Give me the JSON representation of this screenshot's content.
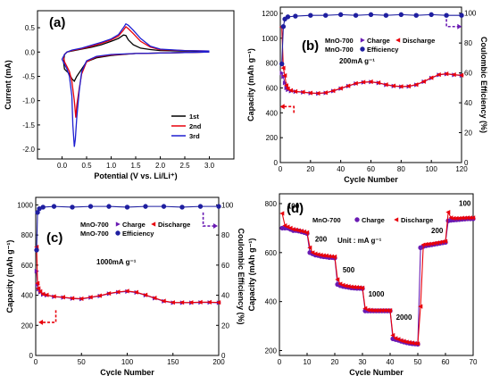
{
  "chart_data": [
    {
      "panel": "(a)",
      "type": "line",
      "xlabel": "Potential (V vs. Li/Li⁺)",
      "ylabel": "Current (mA)",
      "xlim": [
        -0.5,
        3.5
      ],
      "ylim": [
        -2.2,
        0.85
      ],
      "xticks": [
        "0.0",
        "0.5",
        "1.0",
        "1.5",
        "2.0",
        "2.5",
        "3.0"
      ],
      "yticks": [
        "-2.0",
        "-1.5",
        "-1.0",
        "-0.5",
        "0.0",
        "0.5"
      ],
      "legend_position": "lower-right",
      "series": [
        {
          "name": "1st",
          "color": "#000000",
          "x": [
            3.0,
            2.5,
            2.0,
            1.5,
            1.0,
            0.7,
            0.5,
            0.4,
            0.3,
            0.25,
            0.2,
            0.15,
            0.1,
            0.05,
            0.03,
            0.05,
            0.1,
            0.2,
            0.4,
            0.6,
            0.8,
            1.0,
            1.15,
            1.25,
            1.3,
            1.35,
            1.45,
            1.6,
            1.8,
            2.0,
            2.5,
            3.0
          ],
          "y": [
            0.0,
            -0.01,
            -0.02,
            -0.03,
            -0.07,
            -0.12,
            -0.2,
            -0.35,
            -0.5,
            -0.6,
            -0.55,
            -0.45,
            -0.4,
            -0.35,
            -0.2,
            -0.05,
            0.0,
            0.02,
            0.06,
            0.1,
            0.15,
            0.22,
            0.28,
            0.35,
            0.34,
            0.25,
            0.15,
            0.08,
            0.05,
            0.03,
            0.02,
            0.02
          ]
        },
        {
          "name": "2nd",
          "color": "#e8000b",
          "x": [
            3.0,
            2.5,
            2.0,
            1.5,
            1.0,
            0.7,
            0.5,
            0.4,
            0.35,
            0.3,
            0.28,
            0.25,
            0.2,
            0.15,
            0.1,
            0.05,
            0.03,
            0.05,
            0.1,
            0.2,
            0.4,
            0.6,
            0.8,
            1.0,
            1.15,
            1.25,
            1.3,
            1.35,
            1.45,
            1.6,
            1.8,
            2.0,
            2.5,
            3.0
          ],
          "y": [
            0.0,
            -0.01,
            -0.02,
            -0.03,
            -0.06,
            -0.1,
            -0.2,
            -0.45,
            -0.75,
            -1.1,
            -1.35,
            -1.0,
            -0.6,
            -0.4,
            -0.3,
            -0.2,
            -0.1,
            -0.05,
            0.0,
            0.03,
            0.07,
            0.12,
            0.18,
            0.25,
            0.33,
            0.45,
            0.52,
            0.48,
            0.38,
            0.22,
            0.1,
            0.05,
            0.03,
            0.02
          ]
        },
        {
          "name": "3rd",
          "color": "#1f1fd1",
          "x": [
            3.0,
            2.5,
            2.0,
            1.5,
            1.0,
            0.7,
            0.5,
            0.4,
            0.35,
            0.3,
            0.27,
            0.25,
            0.22,
            0.2,
            0.15,
            0.1,
            0.05,
            0.0,
            0.05,
            0.1,
            0.2,
            0.4,
            0.6,
            0.8,
            1.0,
            1.15,
            1.25,
            1.3,
            1.35,
            1.45,
            1.6,
            1.8,
            2.0,
            2.5,
            3.0
          ],
          "y": [
            0.0,
            -0.01,
            -0.02,
            -0.03,
            -0.05,
            -0.09,
            -0.18,
            -0.4,
            -0.8,
            -1.35,
            -1.8,
            -1.95,
            -1.5,
            -0.9,
            -0.5,
            -0.35,
            -0.25,
            -0.15,
            -0.05,
            0.0,
            0.04,
            0.08,
            0.14,
            0.2,
            0.27,
            0.36,
            0.5,
            0.58,
            0.55,
            0.45,
            0.28,
            0.12,
            0.06,
            0.03,
            0.02
          ]
        }
      ]
    },
    {
      "panel": "(b)",
      "type": "line",
      "xlabel": "Cycle Number",
      "ylabel": "Capacity (mAh g⁻¹)",
      "ylabel_right": "Coulombic Efficiency (%)",
      "xlim": [
        0,
        120
      ],
      "ylim": [
        0,
        1250
      ],
      "ylim_right": [
        0,
        104
      ],
      "xticks": [
        "0",
        "20",
        "40",
        "60",
        "80",
        "100",
        "120"
      ],
      "yticks": [
        "0",
        "200",
        "400",
        "600",
        "800",
        "1000",
        "1200"
      ],
      "yticks_right": [
        "0",
        "20",
        "40",
        "60",
        "80",
        "100"
      ],
      "annotation": "200mA g⁻¹",
      "legend_position": "top-right",
      "series": [
        {
          "name": "Charge",
          "label": "MnO-700",
          "color": "#6a1bb3",
          "axis": "left",
          "x": [
            1,
            2,
            3,
            4,
            5,
            7,
            10,
            15,
            20,
            25,
            30,
            35,
            40,
            45,
            50,
            55,
            60,
            65,
            70,
            75,
            80,
            85,
            90,
            95,
            100,
            105,
            110,
            115,
            120
          ],
          "y": [
            720,
            690,
            640,
            600,
            585,
            575,
            570,
            565,
            558,
            555,
            560,
            575,
            595,
            615,
            635,
            645,
            648,
            640,
            625,
            615,
            610,
            612,
            625,
            650,
            680,
            705,
            712,
            705,
            700
          ]
        },
        {
          "name": "Discharge",
          "label": "MnO-700",
          "color": "#e8000b",
          "axis": "left",
          "x": [
            1,
            2,
            3,
            4,
            5,
            7,
            10,
            15,
            20,
            25,
            30,
            35,
            40,
            45,
            50,
            55,
            60,
            65,
            70,
            75,
            80,
            85,
            90,
            95,
            100,
            105,
            110,
            115,
            120
          ],
          "y": [
            1090,
            760,
            700,
            620,
            595,
            580,
            572,
            567,
            560,
            557,
            562,
            577,
            597,
            617,
            637,
            647,
            650,
            642,
            627,
            617,
            612,
            614,
            627,
            652,
            682,
            707,
            714,
            707,
            702
          ]
        },
        {
          "name": "Efficiency",
          "label": "MnO-700",
          "color": "#1f1fa0",
          "axis": "right",
          "x": [
            1,
            2,
            3,
            5,
            10,
            20,
            30,
            40,
            50,
            60,
            70,
            80,
            90,
            100,
            110,
            120
          ],
          "y": [
            66,
            91,
            96,
            97.5,
            98,
            98.5,
            98.5,
            99,
            98.5,
            99,
            98.5,
            99,
            98.5,
            99,
            98.5,
            98.5
          ]
        }
      ]
    },
    {
      "panel": "(c)",
      "type": "line",
      "xlabel": "Cycle Number",
      "ylabel": "Capacity (mAh g⁻¹)",
      "ylabel_right": "Coulombic Efficiency (%)",
      "xlim": [
        0,
        200
      ],
      "ylim": [
        0,
        1050
      ],
      "ylim_right": [
        0,
        105
      ],
      "xticks": [
        "0",
        "50",
        "100",
        "150",
        "200"
      ],
      "yticks": [
        "0",
        "200",
        "400",
        "600",
        "800",
        "1000"
      ],
      "yticks_right": [
        "0",
        "20",
        "40",
        "60",
        "80",
        "100"
      ],
      "annotation": "1000mA g⁻¹",
      "legend_position": "top-right",
      "series": [
        {
          "name": "Charge",
          "label": "MnO-700",
          "color": "#6a1bb3",
          "axis": "left",
          "x": [
            1,
            2,
            3,
            5,
            8,
            12,
            20,
            30,
            40,
            50,
            60,
            70,
            80,
            90,
            100,
            110,
            120,
            130,
            140,
            150,
            160,
            170,
            180,
            190,
            200
          ],
          "y": [
            560,
            470,
            440,
            420,
            405,
            400,
            390,
            385,
            378,
            375,
            385,
            395,
            410,
            420,
            425,
            418,
            400,
            380,
            360,
            350,
            350,
            350,
            352,
            352,
            350
          ]
        },
        {
          "name": "Discharge",
          "label": "MnO-700",
          "color": "#e8000b",
          "axis": "left",
          "x": [
            1,
            2,
            3,
            5,
            8,
            12,
            20,
            30,
            40,
            50,
            60,
            70,
            80,
            90,
            100,
            110,
            120,
            130,
            140,
            150,
            160,
            170,
            180,
            190,
            200
          ],
          "y": [
            720,
            480,
            445,
            425,
            408,
            402,
            392,
            387,
            380,
            377,
            387,
            397,
            412,
            422,
            428,
            420,
            402,
            382,
            362,
            352,
            352,
            352,
            354,
            354,
            352
          ]
        },
        {
          "name": "Efficiency",
          "label": "MnO-700",
          "color": "#1f1fa0",
          "axis": "right",
          "x": [
            1,
            2,
            4,
            8,
            20,
            40,
            60,
            80,
            100,
            120,
            140,
            160,
            180,
            200
          ],
          "y": [
            70,
            95,
            97.5,
            98.5,
            99,
            98.5,
            99,
            99,
            98.5,
            99,
            99,
            98.5,
            99,
            99
          ]
        }
      ]
    },
    {
      "panel": "(d)",
      "type": "line",
      "xlabel": "Cycle Number",
      "ylabel": "Capacity (mAh g⁻¹)",
      "xlim": [
        0,
        70
      ],
      "ylim": [
        180,
        840
      ],
      "xticks": [
        "0",
        "10",
        "20",
        "30",
        "40",
        "50",
        "60",
        "70"
      ],
      "yticks": [
        "200",
        "400",
        "600",
        "800"
      ],
      "annotation": "Unit : mA g⁻¹",
      "rate_labels": [
        "100",
        "200",
        "500",
        "1000",
        "2000",
        "200",
        "100"
      ],
      "legend_position": "top-center",
      "series": [
        {
          "name": "Charge",
          "label": "MnO-700",
          "color": "#6a1bb3",
          "x": [
            1,
            2,
            3,
            4,
            5,
            6,
            7,
            8,
            9,
            10,
            11,
            12,
            13,
            14,
            15,
            16,
            17,
            18,
            19,
            20,
            21,
            22,
            23,
            24,
            25,
            26,
            27,
            28,
            29,
            30,
            31,
            32,
            33,
            34,
            35,
            36,
            37,
            38,
            39,
            40,
            41,
            42,
            43,
            44,
            45,
            46,
            47,
            48,
            49,
            50,
            51,
            52,
            53,
            54,
            55,
            56,
            57,
            58,
            59,
            60,
            61,
            62,
            63,
            64,
            65,
            66,
            67,
            68,
            69,
            70
          ],
          "y": [
            700,
            700,
            700,
            695,
            690,
            690,
            688,
            685,
            682,
            678,
            600,
            595,
            590,
            588,
            585,
            583,
            582,
            580,
            580,
            578,
            470,
            465,
            462,
            460,
            458,
            456,
            455,
            454,
            454,
            453,
            362,
            362,
            362,
            362,
            362,
            362,
            362,
            362,
            362,
            362,
            248,
            245,
            242,
            238,
            235,
            232,
            230,
            228,
            227,
            226,
            620,
            625,
            628,
            630,
            632,
            634,
            636,
            638,
            640,
            642,
            730,
            732,
            733,
            734,
            735,
            736,
            737,
            738,
            738,
            738
          ]
        },
        {
          "name": "Discharge",
          "label": "MnO-700",
          "color": "#e8000b",
          "x": [
            1,
            2,
            3,
            4,
            5,
            6,
            7,
            8,
            9,
            10,
            11,
            12,
            13,
            14,
            15,
            16,
            17,
            18,
            19,
            20,
            21,
            22,
            23,
            24,
            25,
            26,
            27,
            28,
            29,
            30,
            31,
            32,
            33,
            34,
            35,
            36,
            37,
            38,
            39,
            40,
            41,
            42,
            43,
            44,
            45,
            46,
            47,
            48,
            49,
            50,
            51,
            52,
            53,
            54,
            55,
            56,
            57,
            58,
            59,
            60,
            61,
            62,
            63,
            64,
            65,
            66,
            67,
            68,
            69,
            70
          ],
          "y": [
            760,
            710,
            705,
            700,
            695,
            693,
            690,
            688,
            685,
            682,
            620,
            600,
            595,
            592,
            590,
            588,
            587,
            585,
            584,
            583,
            490,
            472,
            467,
            464,
            462,
            460,
            459,
            458,
            457,
            456,
            372,
            366,
            365,
            364,
            364,
            364,
            364,
            364,
            364,
            364,
            262,
            250,
            246,
            241,
            238,
            235,
            233,
            231,
            229,
            228,
            380,
            632,
            634,
            635,
            636,
            638,
            640,
            642,
            644,
            646,
            765,
            742,
            740,
            740,
            740,
            741,
            741,
            742,
            742,
            742
          ]
        }
      ]
    }
  ]
}
